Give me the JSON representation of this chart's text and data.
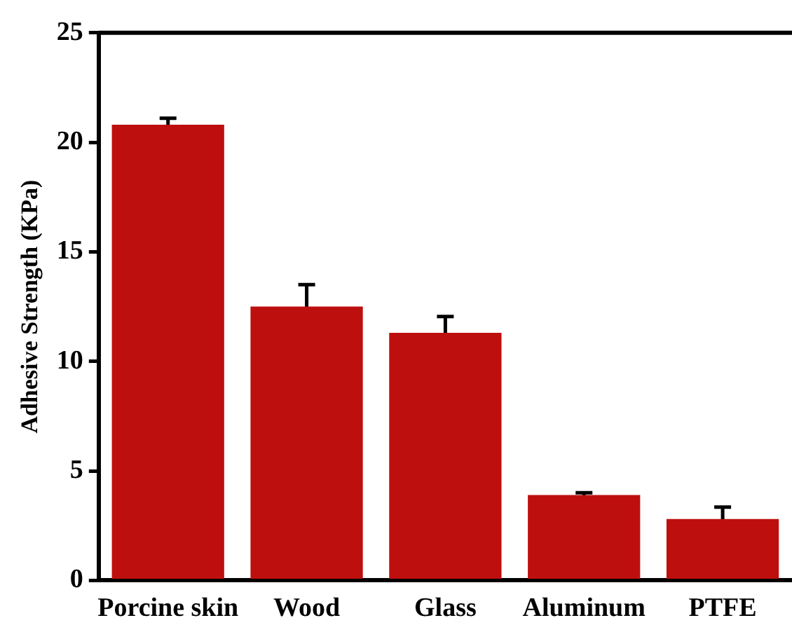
{
  "chart_data": {
    "type": "bar",
    "ylabel": "Adhesive Strength (KPa)",
    "categories": [
      "Porcine skin",
      "Wood",
      "Glass",
      "Aluminum",
      "PTFE"
    ],
    "values": [
      20.8,
      12.5,
      11.3,
      3.9,
      2.8
    ],
    "errors": [
      0.3,
      1.0,
      0.75,
      0.1,
      0.55
    ],
    "color": "#be0f0f",
    "ylim": [
      0,
      25
    ],
    "yticks": [
      0,
      5,
      10,
      15,
      20,
      25
    ],
    "grid": false,
    "legend": false
  }
}
